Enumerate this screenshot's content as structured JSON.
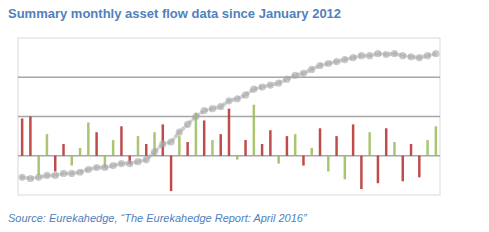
{
  "chart_data": {
    "type": "bar",
    "title": "Summary monthly asset flow data since January 2012",
    "source": "Source: Eurekahedge, “The Eurekahedge Report: April 2016”",
    "categories": [
      null,
      null,
      null,
      null,
      null,
      null,
      null,
      null,
      null,
      null,
      null,
      null,
      null,
      null,
      null,
      null,
      null,
      null,
      null,
      null,
      null,
      null,
      null,
      null,
      null,
      null,
      null,
      null,
      null,
      null,
      null,
      null,
      null,
      null,
      null,
      null,
      null,
      null,
      null,
      null,
      null,
      null,
      null,
      null,
      null,
      null,
      null,
      null,
      null,
      null,
      null
    ],
    "series": [
      {
        "type": "bar",
        "colors": [
          "#b52b2b",
          "#b52b2b",
          "#9bbb59",
          "#9bbb59",
          "#b52b2b",
          "#b52b2b",
          "#9bbb59",
          "#9bbb59",
          "#9bbb59",
          "#b52b2b",
          "#9bbb59",
          "#9bbb59",
          "#b52b2b",
          "#b52b2b",
          "#9bbb59",
          "#b52b2b",
          "#9bbb59",
          "#b52b2b",
          "#b52b2b",
          "#9bbb59",
          "#b52b2b",
          "#9bbb59",
          "#b52b2b",
          "#9bbb59",
          "#b52b2b",
          "#b52b2b",
          "#9bbb59",
          "#b52b2b",
          "#9bbb59",
          "#b52b2b",
          "#b52b2b",
          "#9bbb59",
          "#b52b2b",
          "#9bbb59",
          "#b52b2b",
          "#9bbb59",
          "#b52b2b",
          "#9bbb59",
          "#b52b2b",
          "#9bbb59",
          "#b52b2b",
          "#b52b2b",
          "#9bbb59",
          "#b52b2b",
          "#b52b2b",
          "#9bbb59",
          "#b52b2b",
          "#b52b2b",
          "#b52b2b",
          "#9bbb59",
          "#9bbb59"
        ],
        "values": [
          0.95,
          1.0,
          -0.5,
          0.55,
          -0.4,
          0.3,
          -0.25,
          0.2,
          0.85,
          0.6,
          -0.3,
          0.4,
          0.75,
          -0.2,
          0.5,
          0.3,
          0.6,
          0.8,
          -0.9,
          0.5,
          0.35,
          1.1,
          0.9,
          0.4,
          0.55,
          1.2,
          -0.1,
          0.4,
          1.3,
          0.3,
          0.65,
          -0.2,
          0.5,
          0.55,
          -0.25,
          0.2,
          0.7,
          -0.4,
          0.5,
          -0.6,
          0.8,
          -0.85,
          0.6,
          -0.7,
          0.7,
          0.35,
          -0.65,
          0.3,
          -0.55,
          0.4,
          0.75
        ]
      },
      {
        "type": "line",
        "color": "#a6a6a6",
        "marker": "circle",
        "values": [
          -0.55,
          -0.58,
          -0.55,
          -0.5,
          -0.5,
          -0.45,
          -0.45,
          -0.42,
          -0.35,
          -0.3,
          -0.3,
          -0.25,
          -0.2,
          -0.2,
          -0.15,
          -0.1,
          0.1,
          0.3,
          0.35,
          0.6,
          0.8,
          1.0,
          1.15,
          1.2,
          1.25,
          1.4,
          1.45,
          1.55,
          1.7,
          1.75,
          1.8,
          1.85,
          1.95,
          2.05,
          2.1,
          2.2,
          2.3,
          2.35,
          2.4,
          2.45,
          2.5,
          2.55,
          2.55,
          2.6,
          2.58,
          2.6,
          2.55,
          2.52,
          2.5,
          2.55,
          2.6
        ]
      }
    ],
    "ylim": [
      -1,
      3
    ],
    "yticks": [
      0,
      1,
      2
    ],
    "grid": true,
    "tick_labels": false
  }
}
